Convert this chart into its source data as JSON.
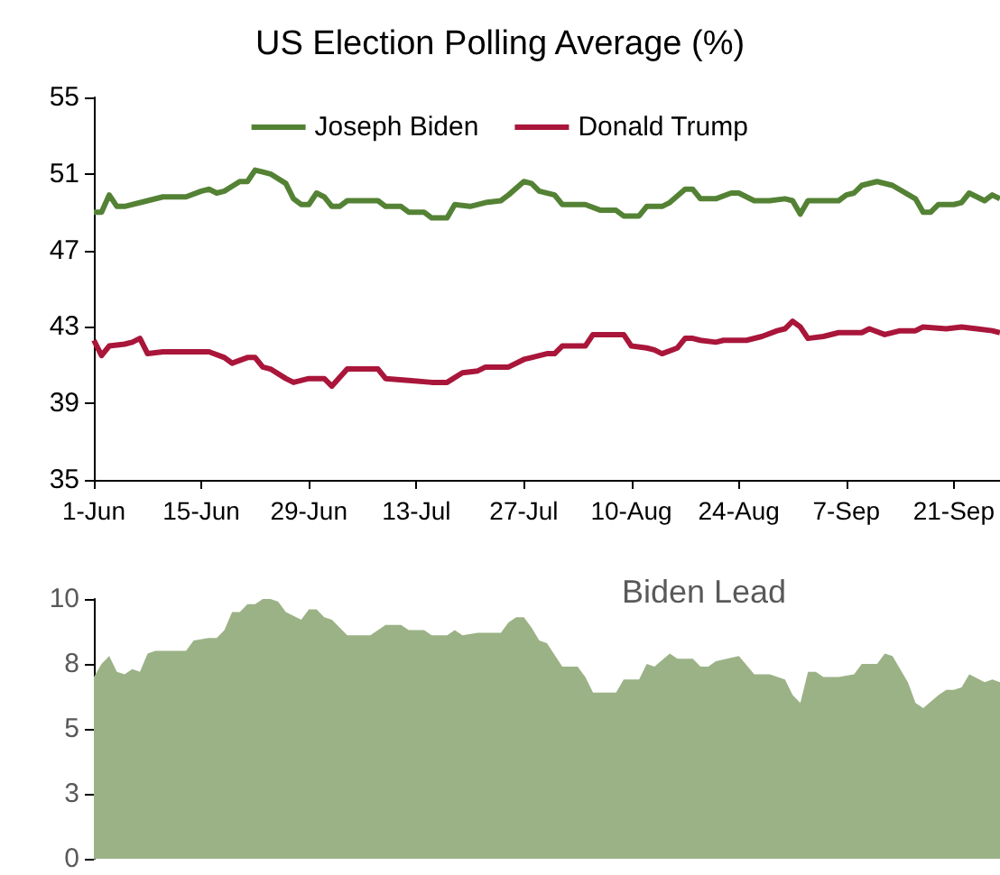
{
  "chart_data": [
    {
      "type": "line",
      "title": "US Election Polling Average (%)",
      "xlim": [
        "--06-01",
        "--09-27"
      ],
      "xticks": [
        {
          "value": "--06-01",
          "label": "1-Jun"
        },
        {
          "value": "--06-15",
          "label": "15-Jun"
        },
        {
          "value": "--06-29",
          "label": "29-Jun"
        },
        {
          "value": "--07-13",
          "label": "13-Jul"
        },
        {
          "value": "--07-27",
          "label": "27-Jul"
        },
        {
          "value": "--08-10",
          "label": "10-Aug"
        },
        {
          "value": "--08-24",
          "label": "24-Aug"
        },
        {
          "value": "--09-07",
          "label": "7-Sep"
        },
        {
          "value": "--09-21",
          "label": "21-Sep"
        }
      ],
      "ylim": [
        35,
        55
      ],
      "yticks": [
        35,
        39,
        43,
        47,
        51,
        55
      ],
      "grid": false,
      "legend": "top",
      "series": [
        {
          "name": "Joseph Biden",
          "color": "#548235",
          "x": [
            "--06-01",
            "--06-02",
            "--06-03",
            "--06-04",
            "--06-05",
            "--06-08",
            "--06-10",
            "--06-13",
            "--06-15",
            "--06-16",
            "--06-17",
            "--06-18",
            "--06-20",
            "--06-21",
            "--06-22",
            "--06-23",
            "--06-24",
            "--06-26",
            "--06-27",
            "--06-28",
            "--06-29",
            "--06-30",
            "--07-01",
            "--07-02",
            "--07-03",
            "--07-04",
            "--07-08",
            "--07-09",
            "--07-11",
            "--07-12",
            "--07-14",
            "--07-15",
            "--07-17",
            "--07-18",
            "--07-20",
            "--07-22",
            "--07-24",
            "--07-25",
            "--07-27",
            "--07-28",
            "--07-29",
            "--07-31",
            "--08-01",
            "--08-04",
            "--08-06",
            "--08-08",
            "--08-09",
            "--08-11",
            "--08-12",
            "--08-14",
            "--08-15",
            "--08-17",
            "--08-18",
            "--08-19",
            "--08-21",
            "--08-23",
            "--08-24",
            "--08-26",
            "--08-28",
            "--08-30",
            "--08-31",
            "--09-01",
            "--09-02",
            "--09-06",
            "--09-07",
            "--09-08",
            "--09-09",
            "--09-11",
            "--09-13",
            "--09-16",
            "--09-17",
            "--09-18",
            "--09-19",
            "--09-21",
            "--09-22",
            "--09-23",
            "--09-25",
            "--09-26",
            "--09-27"
          ],
          "values": [
            49.0,
            49.0,
            49.9,
            49.3,
            49.3,
            49.6,
            49.8,
            49.8,
            50.1,
            50.2,
            50.0,
            50.1,
            50.6,
            50.6,
            51.2,
            51.1,
            51.0,
            50.5,
            49.7,
            49.4,
            49.4,
            50.0,
            49.8,
            49.3,
            49.3,
            49.6,
            49.6,
            49.3,
            49.3,
            49.0,
            49.0,
            48.7,
            48.7,
            49.4,
            49.3,
            49.5,
            49.6,
            49.9,
            50.6,
            50.5,
            50.1,
            49.9,
            49.4,
            49.4,
            49.1,
            49.1,
            48.8,
            48.8,
            49.3,
            49.3,
            49.5,
            50.2,
            50.2,
            49.7,
            49.7,
            50.0,
            50.0,
            49.6,
            49.6,
            49.7,
            49.6,
            48.9,
            49.6,
            49.6,
            49.9,
            50.0,
            50.4,
            50.6,
            50.4,
            49.7,
            49.0,
            49.0,
            49.4,
            49.4,
            49.5,
            50.0,
            49.6,
            49.9,
            49.7
          ]
        },
        {
          "name": "Donald Trump",
          "color": "#a9163a",
          "x": [
            "--06-01",
            "--06-02",
            "--06-03",
            "--06-05",
            "--06-06",
            "--06-07",
            "--06-08",
            "--06-10",
            "--06-16",
            "--06-18",
            "--06-19",
            "--06-21",
            "--06-22",
            "--06-23",
            "--06-24",
            "--06-26",
            "--06-27",
            "--06-29",
            "--07-01",
            "--07-02",
            "--07-04",
            "--07-08",
            "--07-09",
            "--07-12",
            "--07-15",
            "--07-17",
            "--07-19",
            "--07-21",
            "--07-22",
            "--07-25",
            "--07-27",
            "--07-28",
            "--07-30",
            "--07-31",
            "--08-01",
            "--08-04",
            "--08-05",
            "--08-09",
            "--08-10",
            "--08-12",
            "--08-13",
            "--08-14",
            "--08-16",
            "--08-17",
            "--08-18",
            "--08-19",
            "--08-21",
            "--08-22",
            "--08-25",
            "--08-27",
            "--08-29",
            "--08-30",
            "--08-31",
            "--09-01",
            "--09-02",
            "--09-04",
            "--09-06",
            "--09-09",
            "--09-10",
            "--09-12",
            "--09-14",
            "--09-16",
            "--09-17",
            "--09-20",
            "--09-22",
            "--09-24",
            "--09-26",
            "--09-27"
          ],
          "values": [
            42.3,
            41.5,
            42.0,
            42.1,
            42.2,
            42.4,
            41.6,
            41.7,
            41.7,
            41.4,
            41.1,
            41.4,
            41.4,
            40.9,
            40.8,
            40.3,
            40.1,
            40.3,
            40.3,
            39.9,
            40.8,
            40.8,
            40.3,
            40.2,
            40.1,
            40.1,
            40.6,
            40.7,
            40.9,
            40.9,
            41.3,
            41.4,
            41.6,
            41.6,
            42.0,
            42.0,
            42.6,
            42.6,
            42.0,
            41.9,
            41.8,
            41.6,
            41.9,
            42.4,
            42.4,
            42.3,
            42.2,
            42.3,
            42.3,
            42.5,
            42.8,
            42.9,
            43.3,
            43.0,
            42.4,
            42.5,
            42.7,
            42.7,
            42.9,
            42.6,
            42.8,
            42.8,
            43.0,
            42.9,
            43.0,
            42.9,
            42.8,
            42.7
          ]
        }
      ]
    },
    {
      "type": "area",
      "title": "Biden Lead",
      "xlim": [
        "--06-01",
        "--09-27"
      ],
      "tick_labels": "y",
      "ylim": [
        0,
        10
      ],
      "yticks": [
        0,
        {
          "value": 2.5,
          "label": "3"
        },
        5,
        {
          "value": 7.5,
          "label": "8"
        },
        10
      ],
      "grid": false,
      "series": [
        {
          "color": "#9bb286",
          "x": [
            "--06-01",
            "--06-02",
            "--06-03",
            "--06-04",
            "--06-05",
            "--06-06",
            "--06-07",
            "--06-08",
            "--06-09",
            "--06-13",
            "--06-14",
            "--06-16",
            "--06-17",
            "--06-18",
            "--06-19",
            "--06-20",
            "--06-21",
            "--06-22",
            "--06-23",
            "--06-24",
            "--06-25",
            "--06-26",
            "--06-28",
            "--06-29",
            "--06-30",
            "--07-01",
            "--07-02",
            "--07-04",
            "--07-07",
            "--07-09",
            "--07-11",
            "--07-12",
            "--07-14",
            "--07-15",
            "--07-17",
            "--07-18",
            "--07-19",
            "--07-21",
            "--07-24",
            "--07-25",
            "--07-26",
            "--07-27",
            "--07-28",
            "--07-29",
            "--07-30",
            "--08-01",
            "--08-03",
            "--08-04",
            "--08-05",
            "--08-08",
            "--08-09",
            "--08-11",
            "--08-12",
            "--08-13",
            "--08-15",
            "--08-16",
            "--08-18",
            "--08-19",
            "--08-20",
            "--08-21",
            "--08-24",
            "--08-26",
            "--08-28",
            "--08-30",
            "--08-31",
            "--09-01",
            "--09-02",
            "--09-03",
            "--09-04",
            "--09-06",
            "--09-08",
            "--09-09",
            "--09-11",
            "--09-12",
            "--09-13",
            "--09-14",
            "--09-15",
            "--09-16",
            "--09-17",
            "--09-19",
            "--09-20",
            "--09-21",
            "--09-22",
            "--09-23",
            "--09-25",
            "--09-26",
            "--09-27"
          ],
          "values": [
            7.0,
            7.5,
            7.8,
            7.2,
            7.1,
            7.3,
            7.2,
            7.9,
            8.0,
            8.0,
            8.4,
            8.5,
            8.5,
            8.8,
            9.5,
            9.5,
            9.8,
            9.8,
            10.0,
            10.0,
            9.9,
            9.5,
            9.2,
            9.6,
            9.6,
            9.3,
            9.2,
            8.6,
            8.6,
            9.0,
            9.0,
            8.8,
            8.8,
            8.6,
            8.6,
            8.8,
            8.6,
            8.7,
            8.7,
            9.1,
            9.3,
            9.3,
            8.9,
            8.4,
            8.3,
            7.4,
            7.4,
            7.0,
            6.4,
            6.4,
            6.9,
            6.9,
            7.5,
            7.4,
            7.9,
            7.7,
            7.7,
            7.4,
            7.4,
            7.6,
            7.8,
            7.1,
            7.1,
            6.9,
            6.3,
            6.0,
            7.2,
            7.2,
            7.0,
            7.0,
            7.1,
            7.5,
            7.5,
            7.9,
            7.8,
            7.3,
            6.8,
            6.0,
            5.8,
            6.3,
            6.5,
            6.5,
            6.6,
            7.1,
            6.8,
            6.9,
            6.8
          ]
        }
      ]
    }
  ]
}
